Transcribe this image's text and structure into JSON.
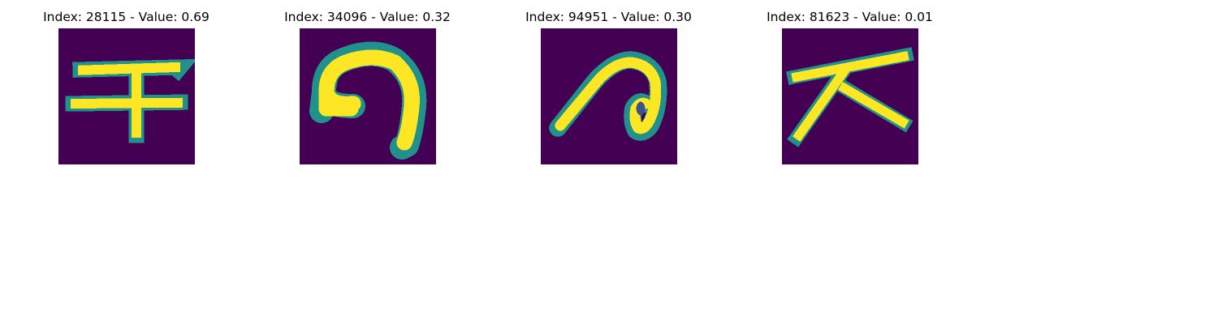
{
  "colors": {
    "background": "#440154",
    "stroke": "#fde725",
    "edge": "#21918c",
    "edge_mid": "#5ec962"
  },
  "panels": [
    {
      "index": "28115",
      "value": "0.69",
      "title": "Index: 28115 - Value: 0.69",
      "glyph": "kuzushiji-te"
    },
    {
      "index": "34096",
      "value": "0.32",
      "title": "Index: 34096 - Value: 0.32",
      "glyph": "kuzushiji-tsu"
    },
    {
      "index": "94951",
      "value": "0.30",
      "title": "Index: 94951 - Value: 0.30",
      "glyph": "kuzushiji-ha"
    },
    {
      "index": "81623",
      "value": "0.01",
      "title": "Index: 81623 - Value: 0.01",
      "glyph": "kuzushiji-ta"
    }
  ]
}
